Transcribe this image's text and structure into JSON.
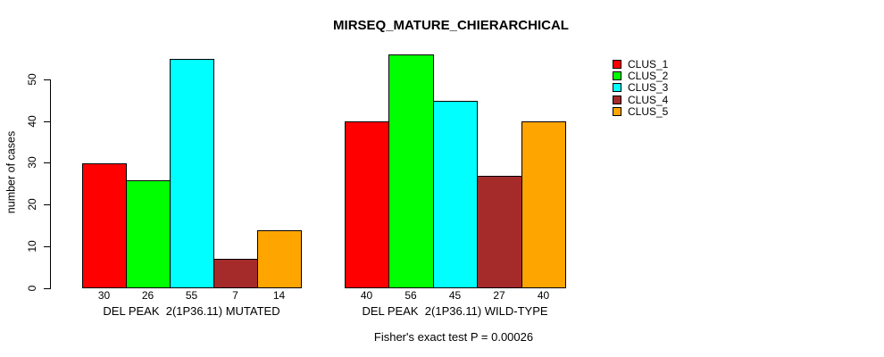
{
  "title": "MIRSEQ_MATURE_CHIERARCHICAL",
  "ylabel": "number of cases",
  "caption": "Fisher's exact test P = 0.00026",
  "chart_data": {
    "type": "bar",
    "title": "MIRSEQ_MATURE_CHIERARCHICAL",
    "xlabel": "",
    "ylabel": "number of cases",
    "ylim": [
      0,
      56
    ],
    "yticks": [
      0,
      10,
      20,
      30,
      40,
      50
    ],
    "grid": false,
    "legend_position": "right-outside",
    "categories": [
      "DEL PEAK  2(1P36.11) MUTATED",
      "DEL PEAK  2(1P36.11) WILD-TYPE"
    ],
    "series": [
      {
        "name": "CLUS_1",
        "color": "#FF0000",
        "values": [
          30,
          40
        ]
      },
      {
        "name": "CLUS_2",
        "color": "#00FF00",
        "values": [
          26,
          56
        ]
      },
      {
        "name": "CLUS_3",
        "color": "#00FFFF",
        "values": [
          55,
          45
        ]
      },
      {
        "name": "CLUS_4",
        "color": "#A52A2A",
        "values": [
          7,
          27
        ]
      },
      {
        "name": "CLUS_5",
        "color": "#FFA500",
        "values": [
          14,
          40
        ]
      }
    ],
    "value_labels": {
      "DEL PEAK  2(1P36.11) MUTATED": [
        30,
        26,
        55,
        7,
        14
      ],
      "DEL PEAK  2(1P36.11) WILD-TYPE": [
        40,
        56,
        45,
        27,
        40
      ]
    },
    "annotation": "Fisher's exact test P = 0.00026"
  }
}
